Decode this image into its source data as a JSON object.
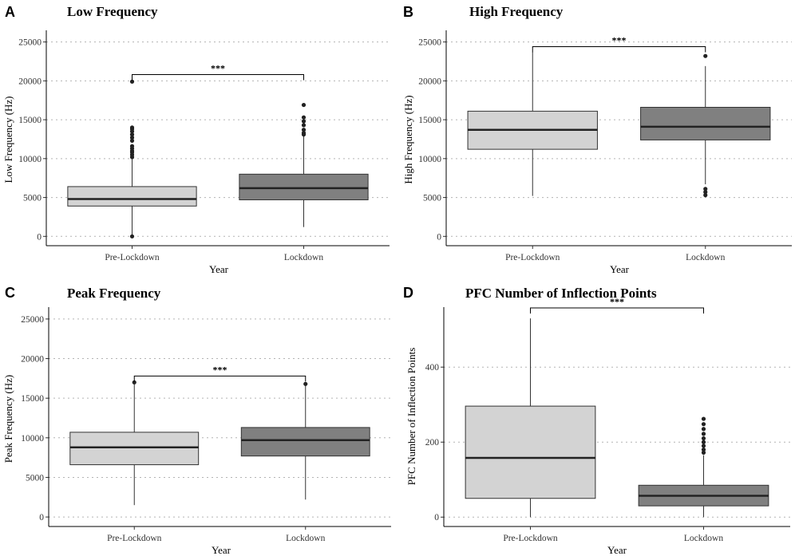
{
  "chart_data": [
    {
      "type": "box",
      "letter": "A",
      "title": "Low Frequency",
      "xlabel": "Year",
      "ylabel": "Low Frequency (Hz)",
      "ylim": [
        -1200,
        26500
      ],
      "yticks": [
        0,
        5000,
        10000,
        15000,
        20000,
        25000
      ],
      "yticklabels": [
        "0",
        "5000",
        "10000",
        "15000",
        "20000",
        "25000"
      ],
      "categories": [
        "Pre-Lockdown",
        "Lockdown"
      ],
      "colors": [
        "#d3d3d3",
        "#808080"
      ],
      "boxes": [
        {
          "min": 0,
          "q1": 3900,
          "median": 4800,
          "q3": 6400,
          "max": 10100,
          "outliers": [
            0,
            10200,
            10500,
            10800,
            11000,
            11300,
            11600,
            12300,
            12700,
            13100,
            13500,
            13800,
            14000,
            19900
          ]
        },
        {
          "min": 1200,
          "q1": 4700,
          "median": 6200,
          "q3": 8000,
          "max": 12900,
          "outliers": [
            13100,
            13300,
            13700,
            14300,
            14800,
            15300,
            16900
          ]
        }
      ],
      "significance": {
        "label": "***",
        "y": 20800
      }
    },
    {
      "type": "box",
      "letter": "B",
      "title": "High Frequency",
      "xlabel": "Year",
      "ylabel": "High Frequency (Hz)",
      "ylim": [
        -1200,
        26500
      ],
      "yticks": [
        0,
        5000,
        10000,
        15000,
        20000,
        25000
      ],
      "yticklabels": [
        "0",
        "5000",
        "10000",
        "15000",
        "20000",
        "25000"
      ],
      "categories": [
        "Pre-Lockdown",
        "Lockdown"
      ],
      "colors": [
        "#d3d3d3",
        "#808080"
      ],
      "boxes": [
        {
          "min": 5200,
          "q1": 11200,
          "median": 13700,
          "q3": 16100,
          "max": 23700,
          "outliers": []
        },
        {
          "min": 6700,
          "q1": 12400,
          "median": 14100,
          "q3": 16600,
          "max": 21900,
          "outliers": [
            5300,
            5700,
            6100,
            23200
          ]
        }
      ],
      "significance": {
        "label": "***",
        "y": 24400
      }
    },
    {
      "type": "box",
      "letter": "C",
      "title": "Peak Frequency",
      "xlabel": "Year",
      "ylabel": "Peak Frequency (Hz)",
      "ylim": [
        -1200,
        26500
      ],
      "yticks": [
        0,
        5000,
        10000,
        15000,
        20000,
        25000
      ],
      "yticklabels": [
        "0",
        "5000",
        "10000",
        "15000",
        "20000",
        "25000"
      ],
      "categories": [
        "Pre-Lockdown",
        "Lockdown"
      ],
      "colors": [
        "#d3d3d3",
        "#808080"
      ],
      "boxes": [
        {
          "min": 1500,
          "q1": 6600,
          "median": 8800,
          "q3": 10700,
          "max": 17000,
          "outliers": [
            17000
          ]
        },
        {
          "min": 2200,
          "q1": 7700,
          "median": 9700,
          "q3": 11300,
          "max": 16800,
          "outliers": [
            16800
          ]
        }
      ],
      "significance": {
        "label": "***",
        "y": 17800
      }
    },
    {
      "type": "box",
      "letter": "D",
      "title": "PFC Number of Inflection Points",
      "xlabel": "Year",
      "ylabel": "PFC Number of Inflection Points",
      "ylim": [
        -25,
        560
      ],
      "yticks": [
        0,
        200,
        400
      ],
      "yticklabels": [
        "0",
        "200",
        "400"
      ],
      "categories": [
        "Pre-Lockdown",
        "Lockdown"
      ],
      "colors": [
        "#d3d3d3",
        "#808080"
      ],
      "boxes": [
        {
          "min": 0,
          "q1": 50,
          "median": 158,
          "q3": 296,
          "max": 530,
          "outliers": []
        },
        {
          "min": 0,
          "q1": 30,
          "median": 57,
          "q3": 85,
          "max": 165,
          "outliers": [
            172,
            180,
            190,
            200,
            210,
            222,
            235,
            248,
            262
          ]
        }
      ],
      "significance": {
        "label": "***",
        "y": 558
      }
    }
  ]
}
